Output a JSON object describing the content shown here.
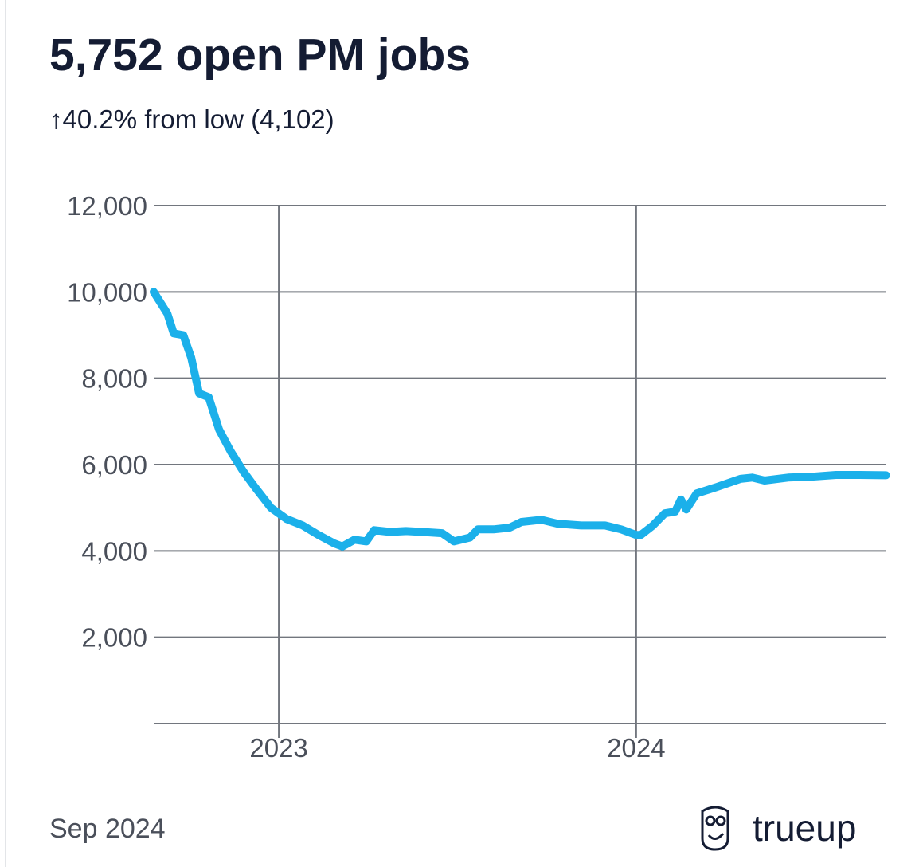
{
  "chart_data": {
    "type": "line",
    "title": "5,752 open PM jobs",
    "subtitle": "↑40.2% from low (4,102)",
    "footer": "Sep 2024",
    "brand": "trueup",
    "color": "#1bb0ea",
    "grid": true,
    "xlim": [
      2022.65,
      2024.7
    ],
    "xticks": [
      2023,
      2024
    ],
    "ylim": [
      0,
      12000
    ],
    "yticks": [
      {
        "value": 2000,
        "label": "2,000"
      },
      {
        "value": 4000,
        "label": "4,000"
      },
      {
        "value": 6000,
        "label": "6,000"
      },
      {
        "value": 8000,
        "label": "8,000"
      },
      {
        "value": 10000,
        "label": "10,000"
      },
      {
        "value": 12000,
        "label": "12,000"
      }
    ],
    "x": [
      2022.65,
      2022.688,
      2022.706,
      2022.733,
      2022.755,
      2022.777,
      2022.804,
      2022.833,
      2022.866,
      2022.9,
      2022.933,
      2022.978,
      2023.022,
      2023.067,
      2023.111,
      2023.156,
      2023.178,
      2023.212,
      2023.245,
      2023.267,
      2023.312,
      2023.356,
      2023.401,
      2023.457,
      2023.49,
      2023.535,
      2023.557,
      2023.601,
      2023.646,
      2023.679,
      2023.735,
      2023.78,
      2023.846,
      2023.913,
      2023.958,
      2024.0,
      2024.013,
      2024.047,
      2024.08,
      2024.109,
      2024.125,
      2024.14,
      2024.169,
      2024.225,
      2024.292,
      2024.325,
      2024.359,
      2024.425,
      2024.492,
      2024.559,
      2024.626,
      2024.699
    ],
    "values": [
      10000,
      9500,
      9040,
      9000,
      8480,
      7650,
      7560,
      6810,
      6300,
      5850,
      5480,
      5000,
      4740,
      4590,
      4370,
      4170,
      4102,
      4260,
      4220,
      4480,
      4440,
      4460,
      4440,
      4410,
      4220,
      4310,
      4500,
      4500,
      4540,
      4670,
      4720,
      4630,
      4590,
      4590,
      4500,
      4370,
      4370,
      4590,
      4870,
      4910,
      5190,
      4960,
      5330,
      5480,
      5670,
      5700,
      5630,
      5700,
      5720,
      5760,
      5760,
      5752
    ]
  }
}
